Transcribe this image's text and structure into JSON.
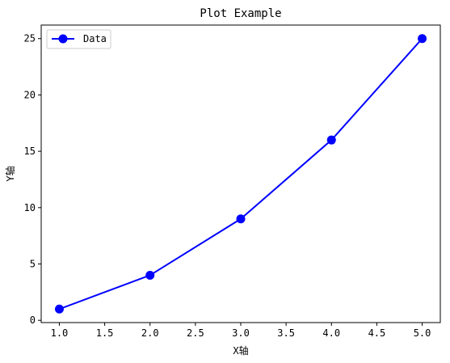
{
  "chart_data": {
    "type": "line",
    "title": "Plot Example",
    "xlabel": "X轴",
    "ylabel": "Y轴",
    "x": [
      1.0,
      2.0,
      3.0,
      4.0,
      5.0
    ],
    "series": [
      {
        "name": "Data",
        "values": [
          1,
          4,
          9,
          16,
          25
        ],
        "color": "#0000ff",
        "marker": "circle"
      }
    ],
    "xlim": [
      0.8,
      5.2
    ],
    "ylim": [
      -0.2,
      26.2
    ],
    "xticks": [
      "1.0",
      "1.5",
      "2.0",
      "2.5",
      "3.0",
      "3.5",
      "4.0",
      "4.5",
      "5.0"
    ],
    "xtick_values": [
      1.0,
      1.5,
      2.0,
      2.5,
      3.0,
      3.5,
      4.0,
      4.5,
      5.0
    ],
    "yticks": [
      "0",
      "5",
      "10",
      "15",
      "20",
      "25"
    ],
    "ytick_values": [
      0,
      5,
      10,
      15,
      20,
      25
    ],
    "grid": false,
    "legend": "upper-left"
  }
}
